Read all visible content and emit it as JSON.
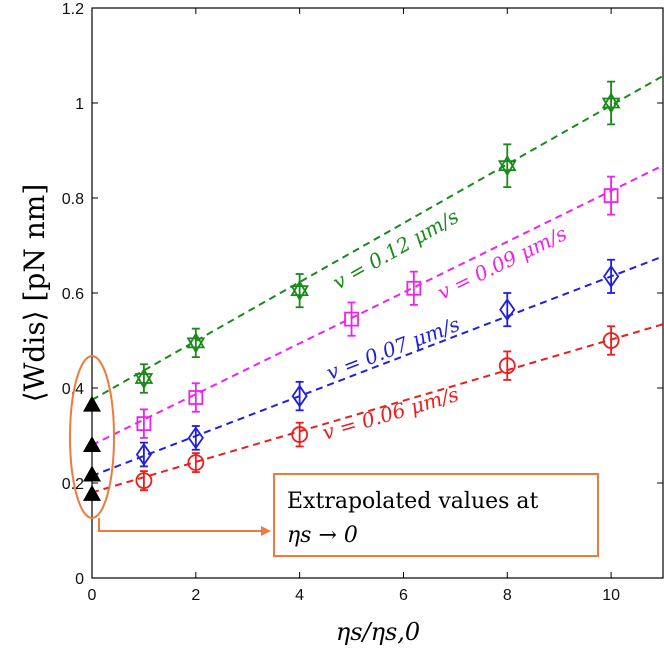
{
  "chart_data": {
    "type": "scatter",
    "xlabel": "ηs/ηs,0",
    "ylabel": "⟨Wdis⟩ [pN nm]",
    "xlim": [
      0,
      11
    ],
    "ylim": [
      0,
      1.2
    ],
    "xticks": [
      "0",
      "2",
      "4",
      "6",
      "8",
      "10"
    ],
    "yticks": [
      "0",
      "0.2",
      "0.4",
      "0.6",
      "0.8",
      "1",
      "1.2"
    ],
    "series": [
      {
        "name": "v = 0.12 μm/s",
        "color": "#1a8a1a",
        "marker": "hexagram",
        "x": [
          1,
          2,
          4,
          8,
          10
        ],
        "y": [
          0.42,
          0.495,
          0.605,
          0.868,
          1.0
        ],
        "err": [
          0.03,
          0.03,
          0.035,
          0.045,
          0.045
        ],
        "fit": {
          "intercept": 0.375,
          "slope": 0.062
        },
        "intercept_marker": 0.365
      },
      {
        "name": "v = 0.09 μm/s",
        "color": "#ee22ee",
        "marker": "square",
        "x": [
          1,
          2,
          5,
          6.2,
          10
        ],
        "y": [
          0.325,
          0.38,
          0.545,
          0.61,
          0.805
        ],
        "err": [
          0.03,
          0.03,
          0.035,
          0.035,
          0.04
        ],
        "fit": {
          "intercept": 0.28,
          "slope": 0.0535
        },
        "intercept_marker": 0.28
      },
      {
        "name": "v = 0.07 μm/s",
        "color": "#1f1fdd",
        "marker": "diamond",
        "x": [
          1,
          2,
          4,
          8,
          10
        ],
        "y": [
          0.26,
          0.295,
          0.383,
          0.565,
          0.635
        ],
        "err": [
          0.025,
          0.025,
          0.03,
          0.035,
          0.035
        ],
        "fit": {
          "intercept": 0.215,
          "slope": 0.042
        },
        "intercept_marker": 0.218
      },
      {
        "name": "v = 0.06 μm/s",
        "color": "#ee1c1c",
        "marker": "circle",
        "x": [
          1,
          2,
          4,
          8,
          10
        ],
        "y": [
          0.205,
          0.243,
          0.302,
          0.447,
          0.5
        ],
        "err": [
          0.02,
          0.02,
          0.025,
          0.03,
          0.03
        ],
        "fit": {
          "intercept": 0.18,
          "slope": 0.0322
        },
        "intercept_marker": 0.177
      }
    ],
    "annotation": {
      "line1": "Extrapolated values at",
      "line2": "ηs → 0"
    }
  }
}
